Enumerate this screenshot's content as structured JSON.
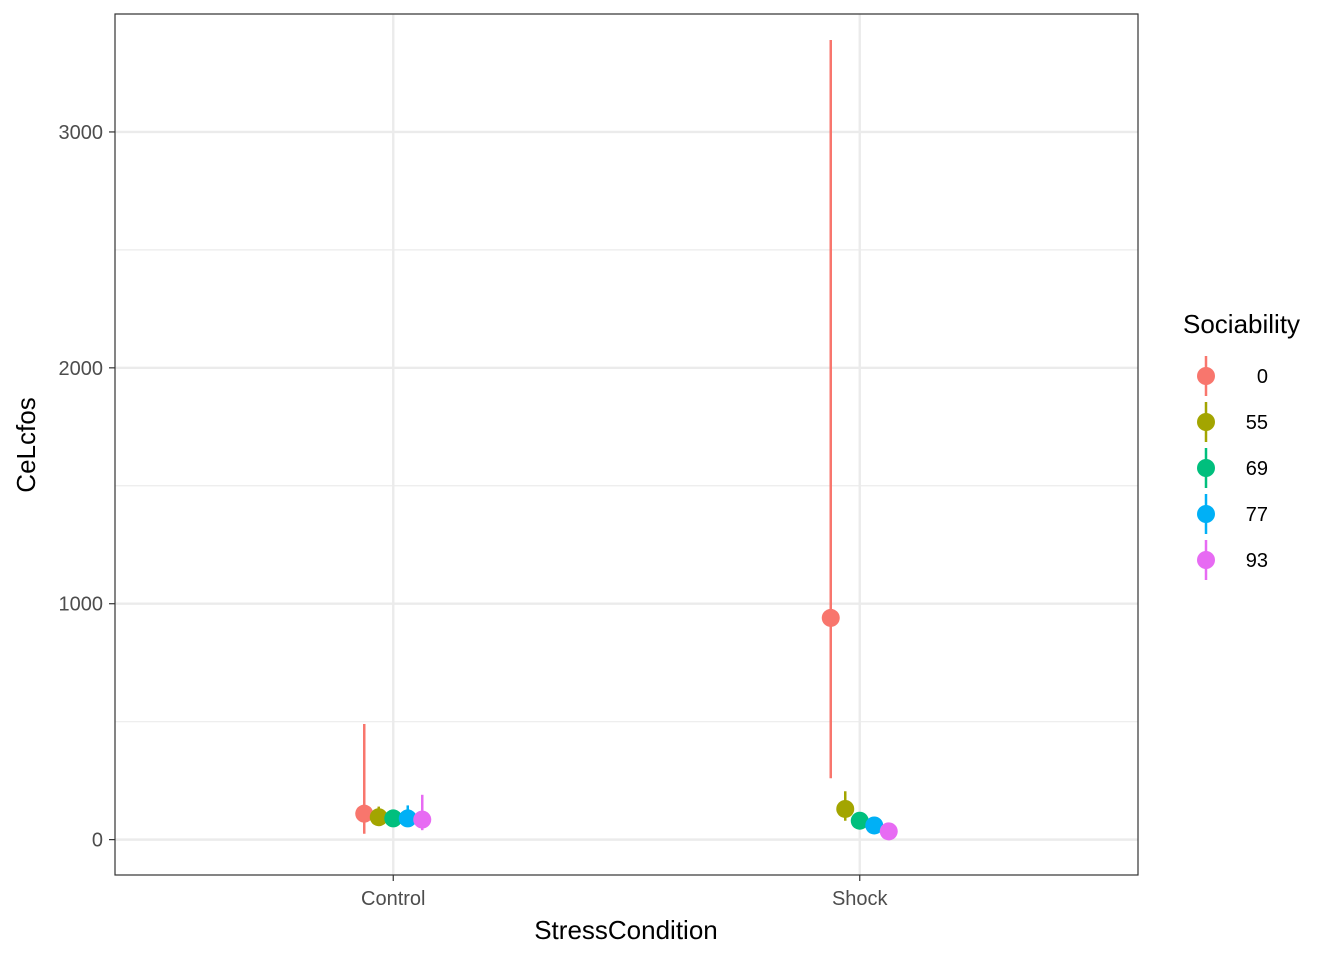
{
  "chart_data": {
    "type": "scatter",
    "subtype": "pointrange",
    "xlabel": "StressCondition",
    "ylabel": "CeLcfos",
    "categories": [
      "Control",
      "Shock"
    ],
    "ylim": [
      -150,
      3500
    ],
    "y_ticks": [
      0,
      1000,
      2000,
      3000
    ],
    "y_tick_labels": [
      "0",
      "1000",
      "2000",
      "3000"
    ],
    "grid": true,
    "legend": {
      "title": "Sociability",
      "position": "right"
    },
    "series": [
      {
        "name": "0",
        "color": "#F8766D",
        "points": [
          {
            "x": "Control",
            "y": 110,
            "ymin": 25,
            "ymax": 490
          },
          {
            "x": "Shock",
            "y": 940,
            "ymin": 260,
            "ymax": 3390
          }
        ]
      },
      {
        "name": "55",
        "color": "#A3A500",
        "points": [
          {
            "x": "Control",
            "y": 95,
            "ymin": 70,
            "ymax": 140
          },
          {
            "x": "Shock",
            "y": 130,
            "ymin": 80,
            "ymax": 205
          }
        ]
      },
      {
        "name": "69",
        "color": "#00BF7D",
        "points": [
          {
            "x": "Control",
            "y": 90,
            "ymin": 70,
            "ymax": 115
          },
          {
            "x": "Shock",
            "y": 80,
            "ymin": 65,
            "ymax": 100
          }
        ]
      },
      {
        "name": "77",
        "color": "#00B0F6",
        "points": [
          {
            "x": "Control",
            "y": 90,
            "ymin": 60,
            "ymax": 145
          },
          {
            "x": "Shock",
            "y": 60,
            "ymin": 48,
            "ymax": 75
          }
        ]
      },
      {
        "name": "93",
        "color": "#E76BF3",
        "points": [
          {
            "x": "Control",
            "y": 85,
            "ymin": 40,
            "ymax": 190
          },
          {
            "x": "Shock",
            "y": 35,
            "ymin": 28,
            "ymax": 45
          }
        ]
      }
    ]
  }
}
